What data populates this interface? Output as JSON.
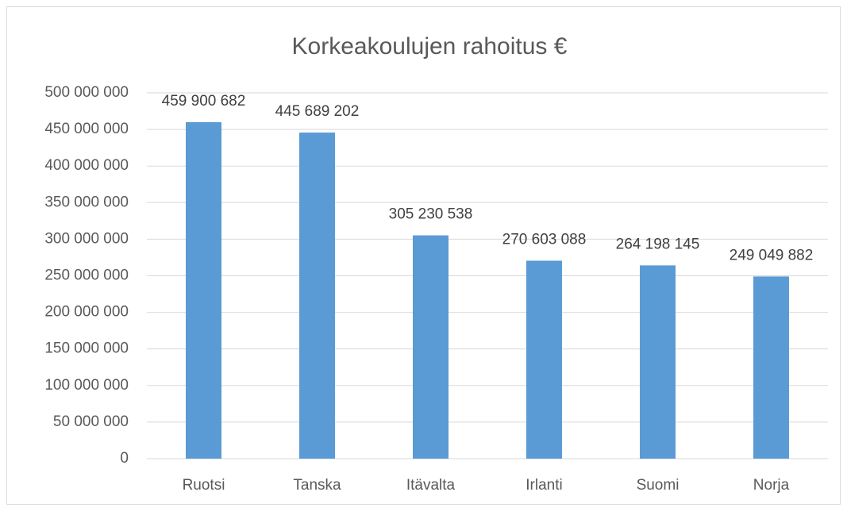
{
  "chart_data": {
    "type": "bar",
    "title": "Korkeakoulujen rahoitus €",
    "categories": [
      "Ruotsi",
      "Tanska",
      "Itävalta",
      "Irlanti",
      "Suomi",
      "Norja"
    ],
    "values": [
      459900682,
      445689202,
      305230538,
      270603088,
      264198145,
      249049882
    ],
    "value_labels": [
      "459 900 682",
      "445 689 202",
      "305 230 538",
      "270 603 088",
      "264 198 145",
      "249 049 882"
    ],
    "color": "#5b9bd5",
    "ylim": [
      0,
      500000000
    ],
    "yticks": [
      0,
      {
        "value": 50000000,
        "label": "50 000 000"
      },
      {
        "value": 100000000,
        "label": "100 000 000"
      },
      {
        "value": 150000000,
        "label": "150 000 000"
      },
      {
        "value": 200000000,
        "label": "200 000 000"
      },
      {
        "value": 250000000,
        "label": "250 000 000"
      },
      {
        "value": 300000000,
        "label": "300 000 000"
      },
      {
        "value": 350000000,
        "label": "350 000 000"
      },
      {
        "value": 400000000,
        "label": "400 000 000"
      },
      {
        "value": 450000000,
        "label": "450 000 000"
      },
      {
        "value": 500000000,
        "label": "500 000 000"
      }
    ],
    "grid": true
  }
}
